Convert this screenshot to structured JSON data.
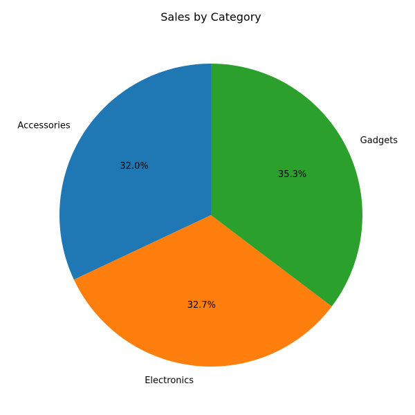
{
  "chart_data": {
    "type": "pie",
    "title": "Sales by Category",
    "categories": [
      "Accessories",
      "Electronics",
      "Gadgets"
    ],
    "values": [
      32.0,
      32.7,
      35.3
    ],
    "value_labels": [
      "32.0%",
      "32.7%",
      "35.3%"
    ],
    "colors": [
      "#1f77b4",
      "#ff7f0e",
      "#2ca02c"
    ],
    "start_angle_deg": 90,
    "direction": "counterclockwise",
    "legend": "none"
  }
}
